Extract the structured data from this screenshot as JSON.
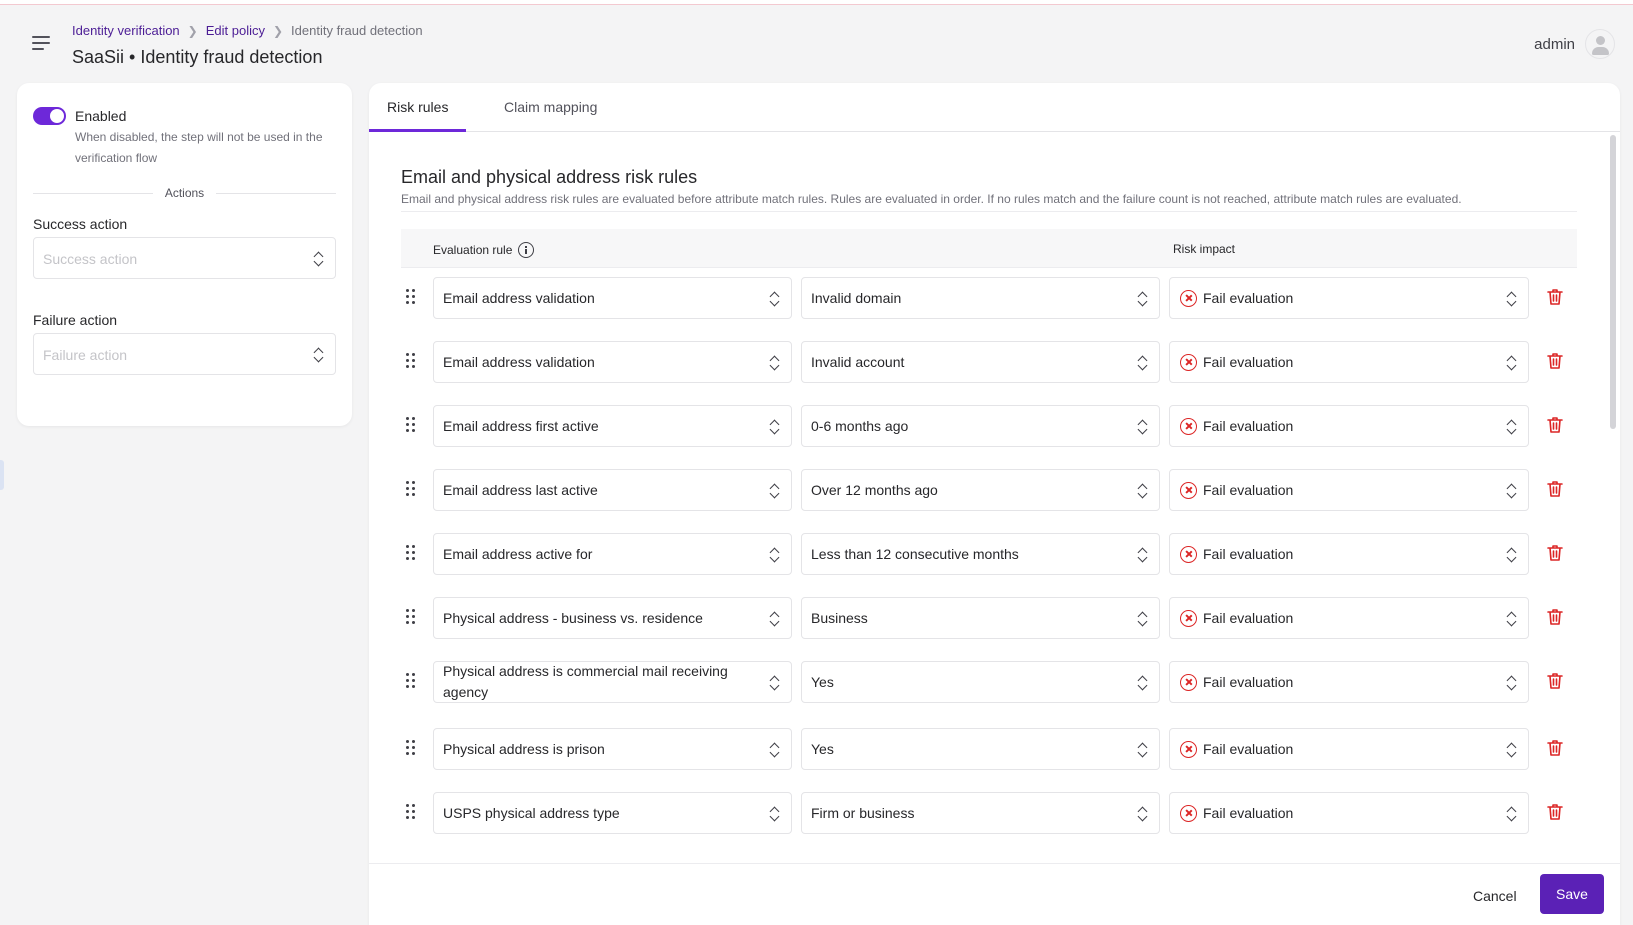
{
  "header": {
    "breadcrumb": [
      "Identity verification",
      "Edit policy",
      "Identity fraud detection"
    ],
    "title": "SaaSii • Identity fraud detection",
    "user": "admin"
  },
  "settings": {
    "enabled_label": "Enabled",
    "enabled": true,
    "enabled_help": "When disabled, the step will not be used in the verification flow",
    "actions_label": "Actions",
    "success_label": "Success action",
    "success_placeholder": "Success action",
    "failure_label": "Failure action",
    "failure_placeholder": "Failure action"
  },
  "tabs": [
    {
      "label": "Risk rules",
      "active": true
    },
    {
      "label": "Claim mapping",
      "active": false
    }
  ],
  "section": {
    "title": "Email and physical address risk rules",
    "description": "Email and physical address risk rules are evaluated before attribute match rules. Rules are evaluated in order. If no rules match and the failure count is not reached, attribute match rules are evaluated.",
    "col_rule": "Evaluation rule",
    "col_impact": "Risk impact"
  },
  "rules": [
    {
      "rule": "Email address validation",
      "value": "Invalid domain",
      "impact": "Fail evaluation"
    },
    {
      "rule": "Email address validation",
      "value": "Invalid account",
      "impact": "Fail evaluation"
    },
    {
      "rule": "Email address first active",
      "value": "0-6 months ago",
      "impact": "Fail evaluation"
    },
    {
      "rule": "Email address last active",
      "value": "Over 12 months ago",
      "impact": "Fail evaluation"
    },
    {
      "rule": "Email address active for",
      "value": "Less than 12 consecutive months",
      "impact": "Fail evaluation"
    },
    {
      "rule": "Physical address - business vs. residence",
      "value": "Business",
      "impact": "Fail evaluation"
    },
    {
      "rule": "Physical address is commercial mail receiving agency",
      "value": "Yes",
      "impact": "Fail evaluation"
    },
    {
      "rule": "Physical address is prison",
      "value": "Yes",
      "impact": "Fail evaluation"
    },
    {
      "rule": "USPS physical address type",
      "value": "Firm or business",
      "impact": "Fail evaluation"
    }
  ],
  "footer": {
    "cancel_label": "Cancel",
    "save_label": "Save"
  },
  "colors": {
    "accent": "#5b21b6",
    "danger": "#dc2626"
  }
}
